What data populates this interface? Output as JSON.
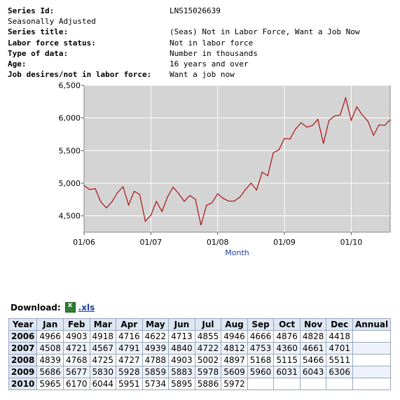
{
  "series_info": [
    {
      "label": "Series Id:",
      "value": "LNS15026639",
      "bold": true
    },
    {
      "label": "Seasonally Adjusted",
      "value": "",
      "bold": false
    },
    {
      "label": "Series title:",
      "value": "(Seas) Not in Labor Force, Want a Job Now",
      "bold": true
    },
    {
      "label": "Labor force status:",
      "value": "Not in labor force",
      "bold": true
    },
    {
      "label": "Type of data:",
      "value": "Number in thousands",
      "bold": true
    },
    {
      "label": "Age:",
      "value": "16 years and over",
      "bold": true
    },
    {
      "label": "Job desires/not in labor force:",
      "value": "Want a job now",
      "bold": true
    }
  ],
  "chart_data": {
    "type": "line",
    "xlabel": "Month",
    "ylabel": "",
    "ylim": [
      4250,
      6500
    ],
    "yticks": [
      4500,
      5000,
      5500,
      6000,
      6500
    ],
    "ytick_labels": [
      "4,500",
      "5,000",
      "5,500",
      "6,000",
      "6,500"
    ],
    "xtick_labels": [
      "01/06",
      "01/07",
      "01/08",
      "01/09",
      "01/10"
    ],
    "grid": true,
    "line_color": "#aa1111",
    "plot_bg": "#d4d4d4",
    "x": [
      "2006-01",
      "2006-02",
      "2006-03",
      "2006-04",
      "2006-05",
      "2006-06",
      "2006-07",
      "2006-08",
      "2006-09",
      "2006-10",
      "2006-11",
      "2006-12",
      "2007-01",
      "2007-02",
      "2007-03",
      "2007-04",
      "2007-05",
      "2007-06",
      "2007-07",
      "2007-08",
      "2007-09",
      "2007-10",
      "2007-11",
      "2007-12",
      "2008-01",
      "2008-02",
      "2008-03",
      "2008-04",
      "2008-05",
      "2008-06",
      "2008-07",
      "2008-08",
      "2008-09",
      "2008-10",
      "2008-11",
      "2008-12",
      "2009-01",
      "2009-02",
      "2009-03",
      "2009-04",
      "2009-05",
      "2009-06",
      "2009-07",
      "2009-08",
      "2009-09",
      "2009-10",
      "2009-11",
      "2009-12",
      "2010-01",
      "2010-02",
      "2010-03",
      "2010-04",
      "2010-05",
      "2010-06",
      "2010-07",
      "2010-08"
    ],
    "values": [
      4966,
      4903,
      4918,
      4716,
      4622,
      4713,
      4855,
      4946,
      4666,
      4876,
      4828,
      4418,
      4508,
      4721,
      4567,
      4791,
      4939,
      4840,
      4722,
      4812,
      4753,
      4360,
      4661,
      4701,
      4839,
      4768,
      4725,
      4727,
      4788,
      4903,
      5002,
      4897,
      5168,
      5115,
      5466,
      5511,
      5686,
      5677,
      5830,
      5928,
      5859,
      5883,
      5978,
      5609,
      5960,
      6031,
      6043,
      6306,
      5965,
      6170,
      6044,
      5951,
      5734,
      5895,
      5886,
      5972
    ]
  },
  "download": {
    "label": "Download:",
    "link_text": ".xls",
    "icon": "excel-icon"
  },
  "table": {
    "headers": [
      "Year",
      "Jan",
      "Feb",
      "Mar",
      "Apr",
      "May",
      "Jun",
      "Jul",
      "Aug",
      "Sep",
      "Oct",
      "Nov",
      "Dec",
      "Annual"
    ],
    "rows": [
      {
        "year": "2006",
        "values": [
          "4966",
          "4903",
          "4918",
          "4716",
          "4622",
          "4713",
          "4855",
          "4946",
          "4666",
          "4876",
          "4828",
          "4418",
          ""
        ]
      },
      {
        "year": "2007",
        "values": [
          "4508",
          "4721",
          "4567",
          "4791",
          "4939",
          "4840",
          "4722",
          "4812",
          "4753",
          "4360",
          "4661",
          "4701",
          ""
        ]
      },
      {
        "year": "2008",
        "values": [
          "4839",
          "4768",
          "4725",
          "4727",
          "4788",
          "4903",
          "5002",
          "4897",
          "5168",
          "5115",
          "5466",
          "5511",
          ""
        ]
      },
      {
        "year": "2009",
        "values": [
          "5686",
          "5677",
          "5830",
          "5928",
          "5859",
          "5883",
          "5978",
          "5609",
          "5960",
          "6031",
          "6043",
          "6306",
          ""
        ]
      },
      {
        "year": "2010",
        "values": [
          "5965",
          "6170",
          "6044",
          "5951",
          "5734",
          "5895",
          "5886",
          "5972",
          "",
          "",
          "",
          "",
          ""
        ]
      }
    ]
  }
}
